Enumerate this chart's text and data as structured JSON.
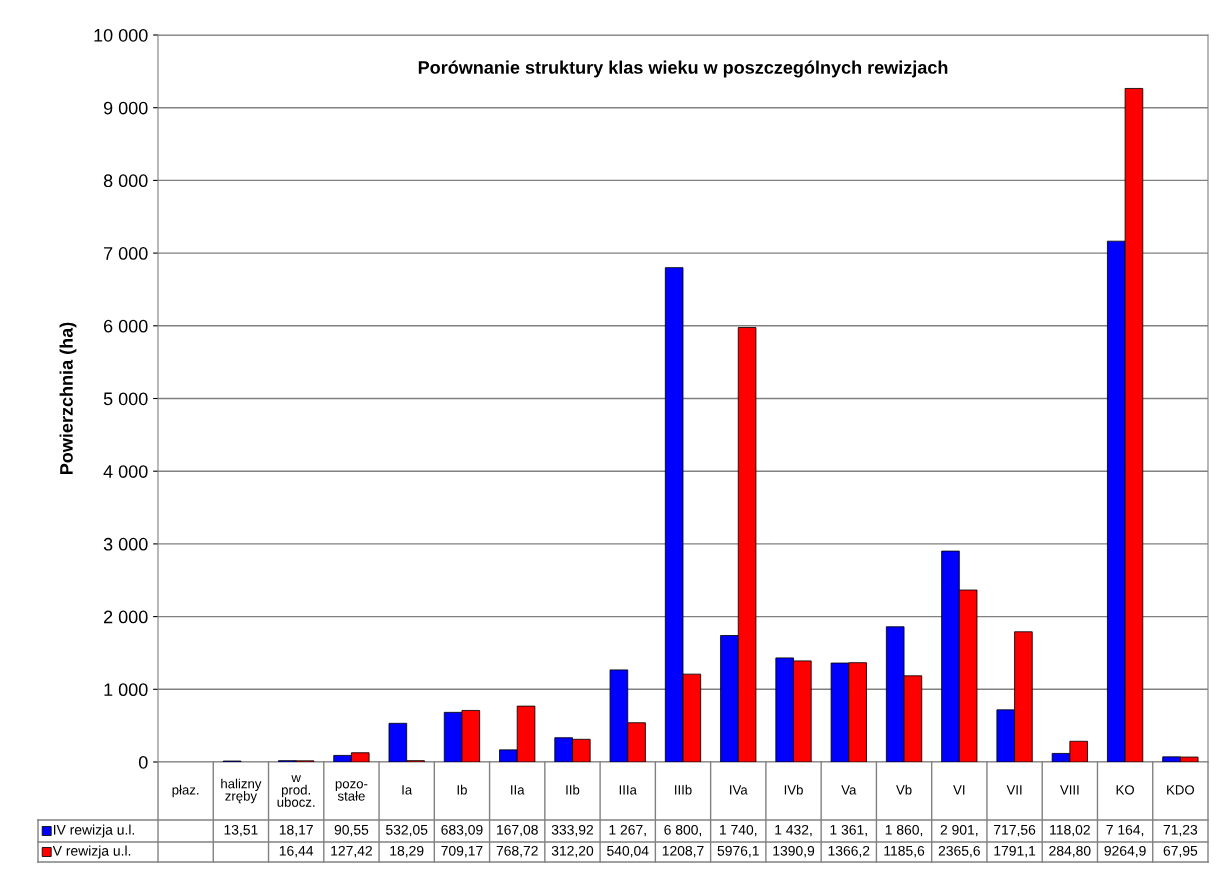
{
  "chart_data": {
    "type": "bar",
    "title": "Porównanie struktury klas wieku w poszczególnych rewizjach",
    "ylabel": "Powierzchnia (ha)",
    "categories": [
      "płaz.",
      "halizny\nzręby",
      "w\nprod.\nubocz.",
      "pozo-\nstałe",
      "Ia",
      "Ib",
      "IIa",
      "IIb",
      "IIIa",
      "IIIb",
      "IVa",
      "IVb",
      "Va",
      "Vb",
      "VI",
      "VII",
      "VIII",
      "KO",
      "KDO"
    ],
    "series": [
      {
        "name": "IV rewizja u.l.",
        "color": "#0000ff",
        "values": [
          null,
          13.51,
          18.17,
          90.55,
          532.05,
          683.09,
          167.08,
          333.92,
          1267,
          6800,
          1740,
          1432,
          1361,
          1860,
          2901,
          717.56,
          118.02,
          7164,
          71.23
        ],
        "value_labels": [
          null,
          "13,51",
          "18,17",
          "90,55",
          "532,05",
          "683,09",
          "167,08",
          "333,92",
          "1 267,",
          "6 800,",
          "1 740,",
          "1 432,",
          "1 361,",
          "1 860,",
          "2 901,",
          "717,56",
          "118,02",
          "7 164,",
          "71,23"
        ]
      },
      {
        "name": "V rewizja u.l.",
        "color": "#ff0000",
        "values": [
          null,
          null,
          16.44,
          127.42,
          18.29,
          709.17,
          768.72,
          312.2,
          540.04,
          1208.7,
          5976.1,
          1390.9,
          1366.2,
          1185.6,
          2365.6,
          1791.1,
          284.8,
          9264.9,
          67.95
        ],
        "value_labels": [
          null,
          null,
          "16,44",
          "127,42",
          "18,29",
          "709,17",
          "768,72",
          "312,20",
          "540,04",
          "1208,7",
          "5976,1",
          "1390,9",
          "1366,2",
          "1185,6",
          "2365,6",
          "1791,1",
          "284,80",
          "9264,9",
          "67,95"
        ]
      }
    ],
    "ylim": [
      0,
      10000
    ],
    "yticks": [
      0,
      {
        "value": 1000,
        "label": "1 000"
      },
      {
        "value": 2000,
        "label": "2 000"
      },
      {
        "value": 3000,
        "label": "3 000"
      },
      {
        "value": 4000,
        "label": "4 000"
      },
      {
        "value": 5000,
        "label": "5 000"
      },
      {
        "value": 6000,
        "label": "6 000"
      },
      {
        "value": 7000,
        "label": "7 000"
      },
      {
        "value": 8000,
        "label": "8 000"
      },
      {
        "value": 9000,
        "label": "9 000"
      },
      {
        "value": 10000,
        "label": "10 000"
      }
    ],
    "grid": "y",
    "legend": "bottom"
  }
}
